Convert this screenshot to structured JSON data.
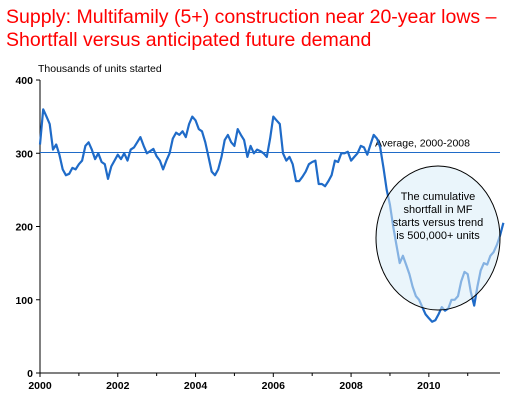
{
  "title_lines": [
    "Supply:  Multifamily (5+) construction near 20-year lows –",
    "Shortfall versus anticipated future demand"
  ],
  "colors": {
    "title": "#ff0000",
    "series": "#1f6bc8",
    "average_line": "#1f6bc8"
  },
  "chart_data": {
    "type": "line",
    "ylabel": "Thousands of units started",
    "xlabel": "",
    "ylim": [
      0,
      400
    ],
    "xlim": [
      2000,
      2011.83
    ],
    "x_ticks": [
      2000,
      2002,
      2004,
      2006,
      2008,
      2010
    ],
    "y_ticks": [
      0,
      100,
      200,
      300,
      400
    ],
    "grid": false,
    "reference_line": {
      "value": 301,
      "label": "Average, 2000-2008"
    },
    "annotation": "The cumulative shortfall in MF starts versus trend is 500,000+ units",
    "series": [
      {
        "name": "",
        "x_start": 2000,
        "step": 0.08333,
        "values": [
          312,
          360,
          350,
          340,
          305,
          312,
          298,
          278,
          270,
          272,
          280,
          278,
          285,
          290,
          310,
          315,
          305,
          292,
          300,
          288,
          285,
          265,
          282,
          290,
          298,
          292,
          300,
          290,
          305,
          308,
          315,
          322,
          310,
          300,
          303,
          306,
          296,
          290,
          278,
          290,
          300,
          320,
          328,
          325,
          330,
          322,
          340,
          350,
          345,
          333,
          330,
          315,
          295,
          275,
          270,
          278,
          295,
          318,
          325,
          315,
          310,
          333,
          325,
          318,
          295,
          310,
          300,
          305,
          303,
          300,
          295,
          320,
          350,
          345,
          340,
          300,
          290,
          295,
          285,
          262,
          262,
          268,
          275,
          285,
          288,
          290,
          258,
          258,
          255,
          262,
          270,
          290,
          288,
          300,
          300,
          302,
          290,
          295,
          300,
          310,
          308,
          298,
          312,
          325,
          320,
          308,
          280,
          250,
          230,
          200,
          175,
          150,
          160,
          148,
          135,
          118,
          105,
          100,
          90,
          80,
          75,
          70,
          72,
          80,
          90,
          85,
          88,
          100,
          100,
          105,
          125,
          138,
          135,
          110,
          92,
          118,
          140,
          150,
          148,
          160,
          165,
          175,
          188,
          205
        ]
      }
    ]
  }
}
